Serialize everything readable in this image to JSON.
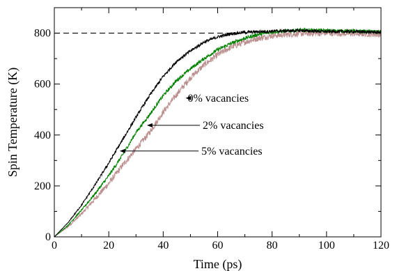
{
  "chart_data": {
    "type": "line",
    "title": "",
    "xlabel": "Time (ps)",
    "ylabel": "Spin Temperature (K)",
    "xlim": [
      0,
      120
    ],
    "ylim": [
      0,
      900
    ],
    "xticks": [
      0,
      20,
      40,
      60,
      80,
      100,
      120
    ],
    "yticks": [
      0,
      200,
      400,
      600,
      800
    ],
    "xtick_labels": [
      "0",
      "20",
      "40",
      "60",
      "80",
      "100",
      "120"
    ],
    "ytick_labels": [
      "0",
      "200",
      "400",
      "600",
      "800"
    ],
    "grid": false,
    "legend": "none",
    "reference_line": {
      "y": 800,
      "x_range": [
        0,
        65
      ],
      "style": "dashed",
      "color": "#000000"
    },
    "series": [
      {
        "color": "#000000",
        "noise": 6,
        "x": [
          0,
          5,
          10,
          15,
          20,
          25,
          30,
          35,
          40,
          45,
          50,
          55,
          60,
          65,
          70,
          80,
          90,
          100,
          110,
          120
        ],
        "y": [
          0,
          55,
          125,
          205,
          290,
          380,
          470,
          555,
          630,
          690,
          730,
          765,
          785,
          798,
          803,
          808,
          810,
          806,
          806,
          803
        ]
      },
      {
        "color": "#008000",
        "noise": 7,
        "x": [
          0,
          5,
          10,
          15,
          20,
          25,
          30,
          35,
          40,
          45,
          50,
          55,
          60,
          65,
          70,
          75,
          80,
          90,
          100,
          110,
          120
        ],
        "y": [
          0,
          45,
          105,
          170,
          240,
          320,
          410,
          480,
          555,
          615,
          660,
          700,
          735,
          760,
          780,
          795,
          805,
          812,
          810,
          808,
          805
        ]
      },
      {
        "color": "#bc8f8f",
        "noise": 12,
        "x": [
          0,
          5,
          10,
          15,
          20,
          25,
          30,
          35,
          40,
          45,
          50,
          55,
          60,
          65,
          70,
          75,
          80,
          90,
          100,
          110,
          120
        ],
        "y": [
          0,
          40,
          90,
          150,
          210,
          280,
          345,
          410,
          490,
          560,
          625,
          675,
          715,
          745,
          765,
          780,
          790,
          798,
          800,
          798,
          795
        ]
      }
    ],
    "annotations": [
      {
        "text": "0% vacancies",
        "text_x": 48.5,
        "text_y": 545,
        "arrow_to_x": 48.2,
        "arrow_to_y": 545
      },
      {
        "text": "2% vacancies",
        "text_x": 54,
        "text_y": 438,
        "arrow_to_x": 34,
        "arrow_to_y": 438
      },
      {
        "text": "5% vacancies",
        "text_x": 53.5,
        "text_y": 337,
        "arrow_to_x": 24,
        "arrow_to_y": 337
      }
    ]
  }
}
